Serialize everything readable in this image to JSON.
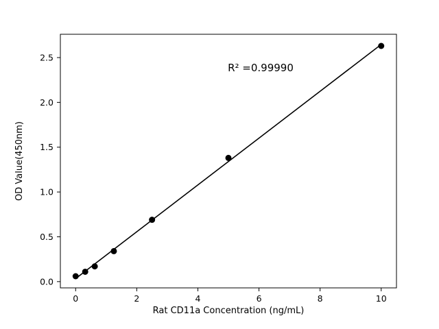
{
  "chart_data": {
    "type": "scatter",
    "title": "",
    "xlabel": "Rat CD11a Concentration (ng/mL)",
    "ylabel": "OD Value(450nm)",
    "annotation": "R² =0.99990",
    "x": [
      0,
      0.3125,
      0.625,
      1.25,
      2.5,
      5,
      10
    ],
    "y": [
      0.06,
      0.11,
      0.17,
      0.34,
      0.69,
      1.38,
      2.63
    ],
    "xticks": [
      0,
      2,
      4,
      6,
      8,
      10
    ],
    "xtick_labels": [
      "0",
      "2",
      "4",
      "6",
      "8",
      "10"
    ],
    "yticks": [
      0.0,
      0.5,
      1.0,
      1.5,
      2.0,
      2.5
    ],
    "ytick_labels": [
      "0.0",
      "0.5",
      "1.0",
      "1.5",
      "2.0",
      "2.5"
    ],
    "xlim": [
      -0.5,
      10.5
    ],
    "ylim": [
      -0.07,
      2.76
    ],
    "line": "linear-fit",
    "legend": "none",
    "grid": false,
    "marker_color": "#000000",
    "line_color": "#000000",
    "background_color": "#ffffff"
  }
}
